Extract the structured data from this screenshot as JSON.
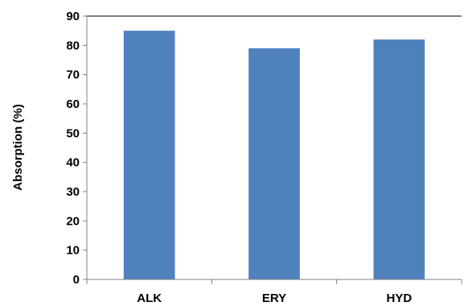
{
  "chart_data": {
    "type": "bar",
    "categories": [
      "ALK",
      "ERY",
      "HYD"
    ],
    "values": [
      85,
      79,
      82
    ],
    "ylabel": "Absorption (%)",
    "xlabel": "",
    "ylim": [
      0,
      90
    ],
    "yticks": [
      0,
      10,
      20,
      30,
      40,
      50,
      60,
      70,
      80,
      90
    ],
    "grid": false,
    "legend": "none",
    "bar_color": "#4f81bd",
    "axis_color": "#808080",
    "frame_top_color": "#000000"
  }
}
